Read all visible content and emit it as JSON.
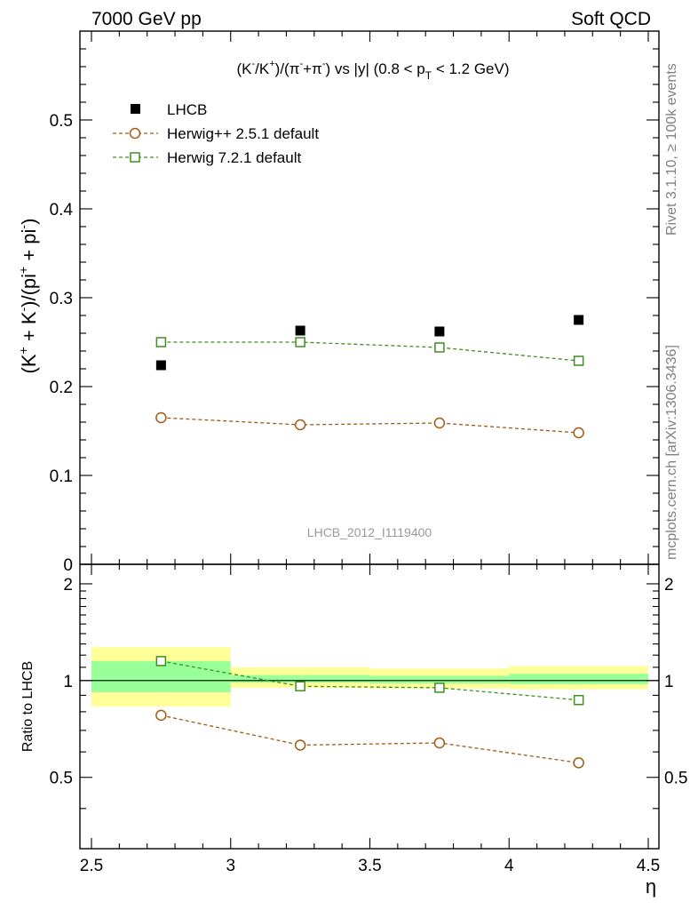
{
  "header": {
    "left": "7000 GeV pp",
    "right": "Soft QCD"
  },
  "side_labels": {
    "rivet": "Rivet 3.1.10, ≥ 100k events",
    "mcplots": "mcplots.cern.ch [arXiv:1306.3436]"
  },
  "chart_data": {
    "type": "scatter",
    "title_parts": {
      "a": "(K",
      "a_sup": "-",
      "b": "/K",
      "b_sup": "+",
      "c": ")/(π",
      "c_sup": "-",
      "d": "+π",
      "d_sup": "-",
      "e": ") vs |y| (0.8 < p",
      "e_sub": "T",
      "f": " < 1.2 GeV)"
    },
    "ylabel_parts": {
      "a": "(K",
      "a_sup": "+",
      "b": " + K",
      "b_sup": "-",
      "c": ")/(pi",
      "c_sup": "+",
      "d": " + pi",
      "d_sup": "-",
      "e": ")"
    },
    "xlabel": "η",
    "watermark": "LHCB_2012_I1119400",
    "xlim": [
      2.5,
      4.5
    ],
    "ylim": [
      0,
      0.6
    ],
    "x_ticks": [
      "2.5",
      "3",
      "3.5",
      "4",
      "4.5"
    ],
    "y_ticks": [
      "0",
      "0.1",
      "0.2",
      "0.3",
      "0.4",
      "0.5"
    ],
    "bins": [
      [
        2.5,
        3.0
      ],
      [
        3.0,
        3.5
      ],
      [
        3.5,
        4.0
      ],
      [
        4.0,
        4.5
      ]
    ],
    "x": [
      2.75,
      3.25,
      3.75,
      4.25
    ],
    "series": [
      {
        "name": "LHCB",
        "style": "data",
        "color": "#000000",
        "values": [
          0.224,
          0.263,
          0.262,
          0.275
        ]
      },
      {
        "name": "Herwig++ 2.5.1 default",
        "style": "circle",
        "color": "#a05a14",
        "values": [
          0.165,
          0.157,
          0.159,
          0.148
        ]
      },
      {
        "name": "Herwig 7.2.1 default",
        "style": "square",
        "color": "#3f8f1f",
        "values": [
          0.25,
          0.25,
          0.244,
          0.229
        ]
      }
    ],
    "ratio": {
      "ylabel": "Ratio to LHCB",
      "ylim": [
        0.3,
        2.3
      ],
      "y_ticks": [
        "0.5",
        "1",
        "2"
      ],
      "band_inner": [
        [
          0.92,
          1.15
        ],
        [
          0.985,
          1.04
        ],
        [
          0.98,
          1.035
        ],
        [
          0.975,
          1.05
        ]
      ],
      "band_outer": [
        [
          0.83,
          1.27
        ],
        [
          0.95,
          1.1
        ],
        [
          0.945,
          1.09
        ],
        [
          0.94,
          1.11
        ]
      ],
      "inner_color": "#99ff99",
      "outer_color": "#ffff99",
      "series": [
        {
          "name": "Herwig++ 2.5.1 default",
          "style": "circle",
          "color": "#a05a14",
          "values": [
            0.78,
            0.63,
            0.64,
            0.555
          ]
        },
        {
          "name": "Herwig 7.2.1 default",
          "style": "square",
          "color": "#3f8f1f",
          "values": [
            1.15,
            0.96,
            0.95,
            0.87
          ]
        }
      ]
    }
  }
}
